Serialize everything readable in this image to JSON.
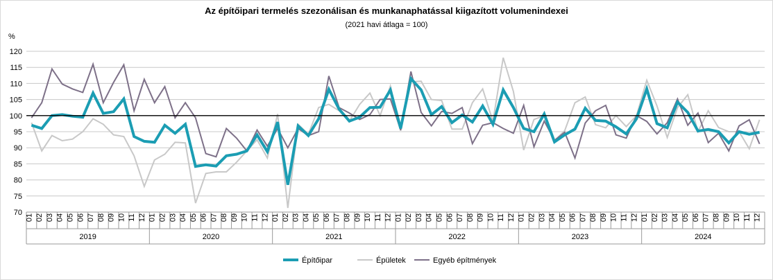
{
  "chart_data": {
    "type": "line",
    "title": "Az építőipari termelés szezonálisan és munkanaphatással kiigazított volumenindexei",
    "subtitle": "(2021 havi átlaga = 100)",
    "ylabel": "%",
    "ylim": [
      70,
      120
    ],
    "yticks": [
      70,
      75,
      80,
      85,
      90,
      95,
      100,
      105,
      110,
      115,
      120
    ],
    "reference_line": 100,
    "months": [
      "01",
      "02",
      "03",
      "04",
      "05",
      "06",
      "07",
      "08",
      "09",
      "10",
      "11",
      "12"
    ],
    "years": [
      "2019",
      "2020",
      "2021",
      "2022",
      "2023",
      "2024"
    ],
    "legend_position": "bottom",
    "series": [
      {
        "name": "Épületek",
        "color": "#c8c8c8",
        "width": 2,
        "values": [
          97.8,
          89,
          93.8,
          92.2,
          92.7,
          95,
          99,
          97.3,
          94,
          93.5,
          87.5,
          78,
          86.2,
          88,
          91.7,
          91.5,
          72.8,
          82,
          82.5,
          82.5,
          85.5,
          89,
          92.5,
          86.8,
          100.5,
          71.3,
          97.3,
          94.2,
          102.5,
          103.5,
          101.5,
          98.3,
          103.5,
          107,
          100,
          109.2,
          95.3,
          110.5,
          110.7,
          105,
          104.7,
          95.8,
          95.8,
          104,
          108.3,
          98.2,
          118,
          107.5,
          89.3,
          98.8,
          100,
          92.2,
          95.3,
          104,
          105.8,
          97.2,
          96.2,
          100,
          96.6,
          100,
          111,
          103,
          93.2,
          102.5,
          106.5,
          95,
          101.5,
          96.3,
          95,
          95,
          89.7,
          98.7
        ]
      },
      {
        "name": "Egyéb építmények",
        "color": "#7d7088",
        "width": 2,
        "values": [
          99.3,
          104,
          114.5,
          109.8,
          108.3,
          107.2,
          116,
          104,
          110.3,
          115.8,
          101.5,
          111.3,
          104,
          109,
          99.3,
          104,
          99.3,
          88.2,
          87.2,
          96,
          93,
          89,
          95.5,
          90.5,
          96,
          90,
          96,
          93.8,
          95,
          112.3,
          102.5,
          100.8,
          98.8,
          100.3,
          105,
          105.2,
          95.5,
          113.7,
          101,
          96.8,
          101.3,
          100.7,
          102.5,
          91.3,
          97,
          97.8,
          96,
          94.5,
          103.2,
          90.3,
          98.3,
          92.3,
          94.8,
          86.8,
          97.7,
          101.5,
          103.2,
          94,
          93,
          100,
          98.2,
          94.3,
          97.8,
          105.2,
          97,
          100.8,
          91.6,
          94.5,
          89,
          96.8,
          98.7,
          91.2
        ]
      },
      {
        "name": "Építőipar",
        "color": "#1b9db3",
        "width": 4,
        "values": [
          97,
          96,
          100,
          100.3,
          99.8,
          99.5,
          107,
          100.7,
          101.2,
          105.2,
          93.5,
          92,
          91.7,
          97,
          94.5,
          97.3,
          84.2,
          84.7,
          84.3,
          87.5,
          88,
          89,
          94,
          88.8,
          98,
          78.5,
          96.8,
          93.8,
          99,
          108.2,
          102,
          98.3,
          99.5,
          102.5,
          102.6,
          108,
          96,
          111.5,
          108,
          100.3,
          102.8,
          97.8,
          100.2,
          98,
          103,
          97.3,
          108,
          102.5,
          96,
          95,
          100.5,
          91.8,
          94,
          95.8,
          102.3,
          98.5,
          98.3,
          96.5,
          94.3,
          99,
          108.3,
          97.5,
          96.2,
          104.2,
          101,
          95.2,
          95.7,
          95,
          91.5,
          95,
          94.2,
          94.8
        ]
      }
    ],
    "legend": [
      "Építőipar",
      "Épületek",
      "Egyéb építmények"
    ]
  }
}
